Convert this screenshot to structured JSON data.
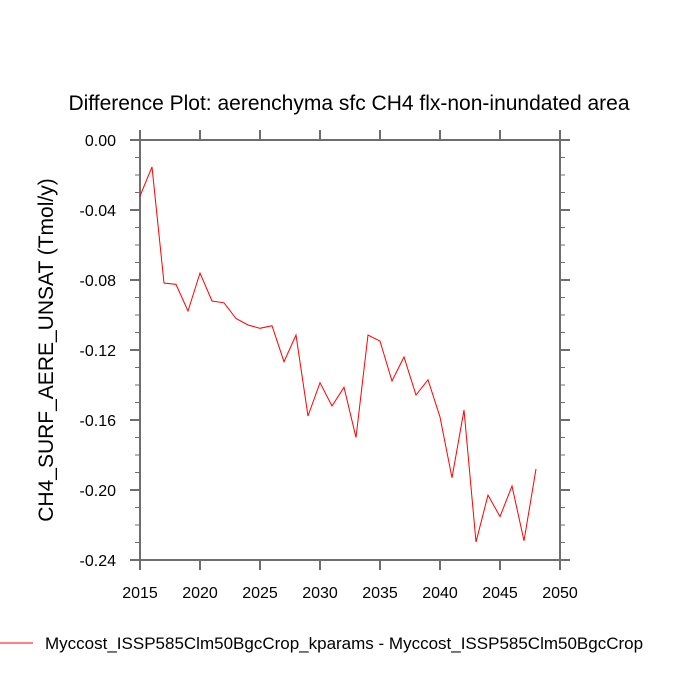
{
  "chart_data": {
    "type": "line",
    "title": "Difference Plot: aerenchyma sfc CH4 flx-non-inundated area",
    "xlabel": "",
    "ylabel": "CH4_SURF_AERE_UNSAT  (Tmol/y)",
    "xlim": [
      2015,
      2050
    ],
    "ylim": [
      -0.24,
      0.0
    ],
    "x_ticks": [
      2015,
      2020,
      2025,
      2030,
      2035,
      2040,
      2045,
      2050
    ],
    "x_tick_labels": [
      "2015",
      "2020",
      "2025",
      "2030",
      "2035",
      "2040",
      "2045",
      "2050"
    ],
    "y_ticks": [
      0.0,
      -0.04,
      -0.08,
      -0.12,
      -0.16,
      -0.2,
      -0.24
    ],
    "y_tick_labels": [
      "0.00",
      "-0.04",
      "-0.08",
      "-0.12",
      "-0.16",
      "-0.20",
      "-0.24"
    ],
    "y_minor_step": 0.01,
    "grid": false,
    "legend_position": "bottom-left",
    "series": [
      {
        "name": "Myccost_ISSP585Clm50BgcCrop_kparams - Myccost_ISSP585Clm50BgcCrop",
        "color": "#ff0000",
        "x": [
          2015,
          2016,
          2017,
          2018,
          2019,
          2020,
          2021,
          2022,
          2023,
          2024,
          2025,
          2026,
          2027,
          2028,
          2029,
          2030,
          2031,
          2032,
          2033,
          2034,
          2035,
          2036,
          2037,
          2038,
          2039,
          2040,
          2041,
          2042,
          2043,
          2044,
          2045,
          2046,
          2047,
          2048
        ],
        "values": [
          -0.032,
          -0.0154,
          -0.0817,
          -0.0825,
          -0.0977,
          -0.076,
          -0.092,
          -0.093,
          -0.102,
          -0.1057,
          -0.1076,
          -0.1061,
          -0.1267,
          -0.1114,
          -0.1577,
          -0.1387,
          -0.152,
          -0.1413,
          -0.17,
          -0.1114,
          -0.1149,
          -0.1377,
          -0.124,
          -0.1457,
          -0.137,
          -0.1583,
          -0.193,
          -0.1543,
          -0.2297,
          -0.2029,
          -0.2152,
          -0.1977,
          -0.229,
          -0.188
        ]
      }
    ]
  },
  "legend": {
    "label": "Myccost_ISSP585Clm50BgcCrop_kparams - Myccost_ISSP585Clm50BgcCrop"
  },
  "colors": {
    "axis": "#6e6e6e",
    "series": "#ff0000"
  }
}
